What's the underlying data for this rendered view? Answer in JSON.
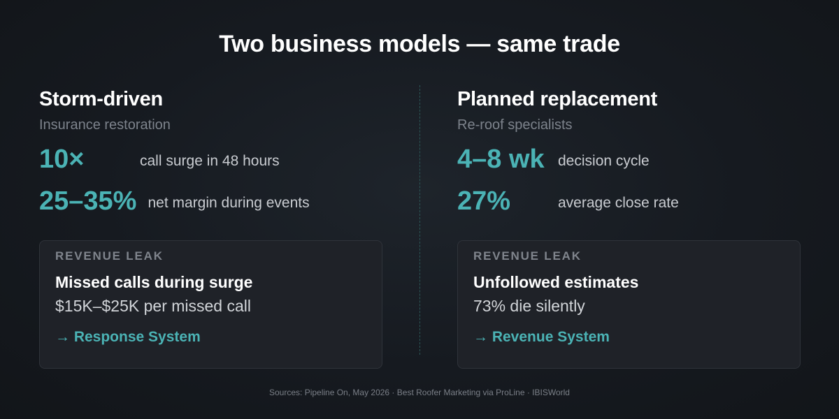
{
  "title": "Two business models — same trade",
  "columns": [
    {
      "heading": "Storm-driven",
      "subheading": "Insurance restoration",
      "stats": [
        {
          "value": "10×",
          "label": "call surge in 48 hours"
        },
        {
          "value": "25–35%",
          "label": "net margin during events"
        }
      ],
      "leak": {
        "kicker": "REVENUE LEAK",
        "title": "Missed calls during surge",
        "detail": "$15K–$25K per missed call",
        "link": "→ Response System"
      }
    },
    {
      "heading": "Planned replacement",
      "subheading": "Re-roof specialists",
      "stats": [
        {
          "value": "4–8 wk",
          "label": "decision cycle"
        },
        {
          "value": "27%",
          "label": "average close rate"
        }
      ],
      "leak": {
        "kicker": "REVENUE LEAK",
        "title": "Unfollowed estimates",
        "detail": "73% die silently",
        "link": "→ Revenue System"
      }
    }
  ],
  "sources": "Sources: Pipeline On, May 2026 · Best Roofer Marketing via ProLine · IBISWorld"
}
